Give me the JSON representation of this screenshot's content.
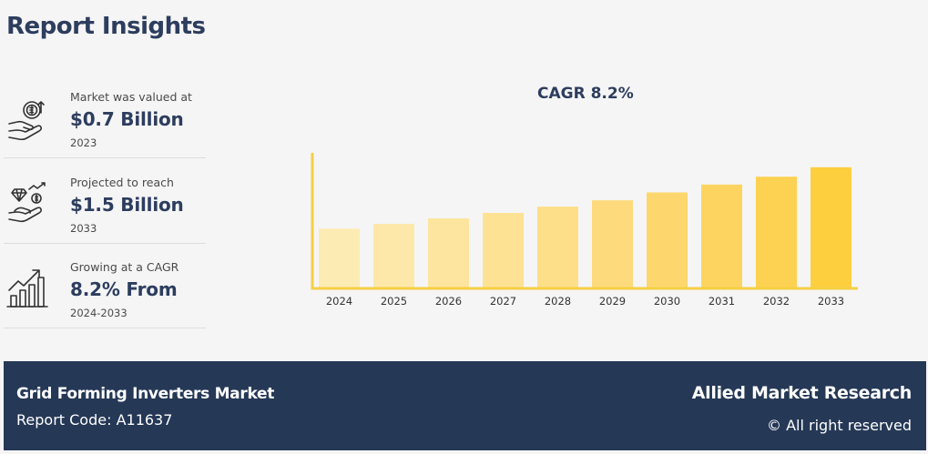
{
  "header": {
    "title": "Report Insights"
  },
  "stats": [
    {
      "label": "Market was valued at",
      "value": "$0.7 Billion",
      "year": "2023",
      "icon": "money-hand-icon"
    },
    {
      "label": "Projected to reach",
      "value": "$1.5 Billion",
      "year": "2033",
      "icon": "diamond-coin-hand-icon"
    },
    {
      "label": "Growing at a CAGR",
      "value": "8.2% From",
      "year": "2024-2033",
      "icon": "growth-bar-chart-icon"
    }
  ],
  "chart_data": {
    "type": "bar",
    "title": "CAGR 8.2%",
    "categories": [
      "2024",
      "2025",
      "2026",
      "2027",
      "2028",
      "2029",
      "2030",
      "2031",
      "2032",
      "2033"
    ],
    "values": [
      0.76,
      0.82,
      0.89,
      0.96,
      1.04,
      1.12,
      1.22,
      1.32,
      1.42,
      1.54
    ],
    "ylim": [
      0,
      1.7
    ],
    "xlabel": "",
    "ylabel": "",
    "grid": false,
    "colors": [
      "#fdebb4",
      "#fde8a9",
      "#fde59f",
      "#fde294",
      "#fddf89",
      "#fddb7c",
      "#fdd76e",
      "#fdd460",
      "#fdd151",
      "#fdcf3f"
    ],
    "axis_color": "#f5cf45"
  },
  "footer": {
    "market_name": "Grid Forming Inverters Market",
    "report_code": "Report Code: A11637",
    "brand": "Allied Market Research",
    "rights": "© All right reserved"
  }
}
